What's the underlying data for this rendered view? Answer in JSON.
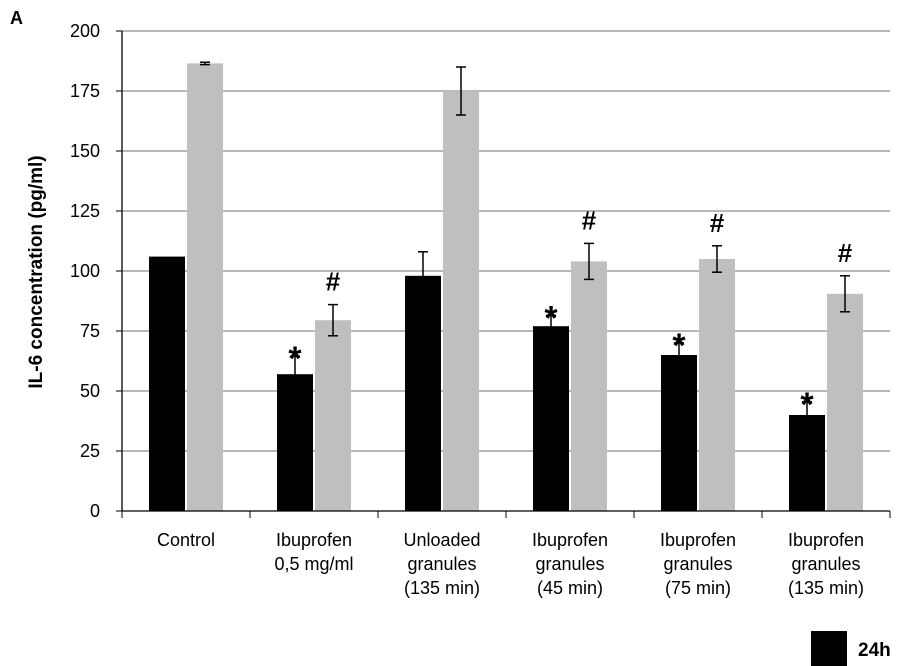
{
  "panel_letter": "A",
  "chart_data": {
    "type": "bar",
    "categories": [
      [
        "Control"
      ],
      [
        "Ibuprofen",
        "0,5 mg/ml"
      ],
      [
        "Unloaded",
        "granules",
        "(135 min)"
      ],
      [
        "Ibuprofen",
        "granules",
        "(45 min)"
      ],
      [
        "Ibuprofen",
        "granules",
        "(75 min)"
      ],
      [
        "Ibuprofen",
        "granules",
        "(135 min)"
      ]
    ],
    "series": [
      {
        "name": "24h",
        "color": "#000000",
        "values": [
          106,
          57,
          98,
          77,
          65,
          40
        ],
        "errors": [
          0,
          7.5,
          10,
          4.5,
          5,
          5.5
        ],
        "markers": [
          "",
          "*",
          "",
          "*",
          "*",
          "*"
        ]
      },
      {
        "color": "#bfbfbf",
        "values": [
          186.5,
          79.5,
          175,
          104,
          105,
          90.5
        ],
        "errors": [
          0.5,
          6.5,
          10,
          7.5,
          5.5,
          7.5
        ],
        "markers": [
          "",
          "#",
          "",
          "#",
          "#",
          "#"
        ]
      }
    ],
    "ylabel": "IL-6 concentration (pg/ml)",
    "ylim": [
      0,
      200
    ],
    "yticks": [
      0,
      25,
      50,
      75,
      100,
      125,
      150,
      175,
      200
    ],
    "grid": true,
    "legend": "bottom-right"
  }
}
